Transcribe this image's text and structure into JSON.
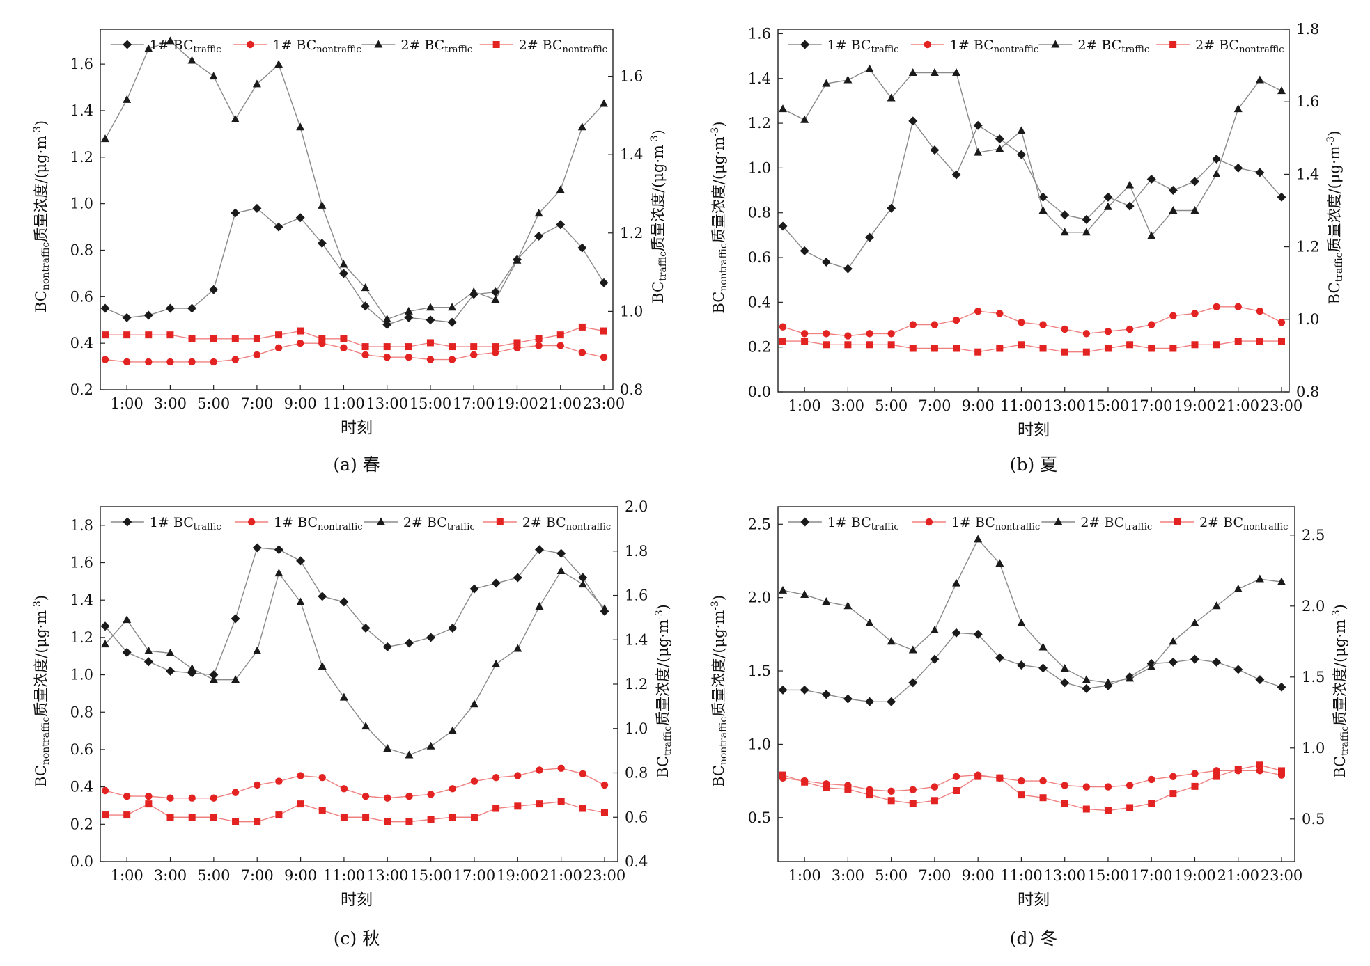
{
  "x_tick_labels": [
    "1:00",
    "3:00",
    "5:00",
    "7:00",
    "9:00",
    "11:00",
    "13:00",
    "15:00",
    "17:00",
    "19:00",
    "21:00",
    "23:00"
  ],
  "x_tick_values": [
    1,
    3,
    5,
    7,
    9,
    11,
    13,
    15,
    17,
    19,
    21,
    23
  ],
  "xlabel": "时刻",
  "ylabel_left": {
    "main": "BC",
    "sub": "nontraffic",
    "rest": "质量浓度/(μg·m",
    "sup": "-3",
    "close": ")"
  },
  "ylabel_right": {
    "main": "BC",
    "sub": "traffic",
    "rest": "质量浓度/(μg·m",
    "sup": "-3",
    "close": ")"
  },
  "legend": [
    {
      "main": "1# BC",
      "sub": "traffic"
    },
    {
      "main": "1# BC",
      "sub": "nontraffic"
    },
    {
      "main": "2# BC",
      "sub": "traffic"
    },
    {
      "main": "2# BC",
      "sub": "nontraffic"
    }
  ],
  "colors": {
    "black": "#1a1a1a",
    "red": "#e32222",
    "line_black": "#8a8a8a",
    "line_red": "#f08080"
  },
  "chart_data": [
    {
      "type": "line",
      "caption": "(a)  春",
      "x": [
        0,
        1,
        2,
        3,
        4,
        5,
        6,
        7,
        8,
        9,
        10,
        11,
        12,
        13,
        14,
        15,
        16,
        17,
        18,
        19,
        20,
        21,
        22,
        23
      ],
      "left_axis": {
        "ylim": [
          0.2,
          1.75
        ],
        "ticks": [
          0.2,
          0.4,
          0.6,
          0.8,
          1.0,
          1.2,
          1.4,
          1.6
        ],
        "tick_labels": [
          "0.2",
          "0.4",
          "0.6",
          "0.8",
          "1.0",
          "1.2",
          "1.4",
          "1.6"
        ]
      },
      "right_axis": {
        "ylim": [
          0.8,
          1.72
        ],
        "ticks": [
          0.8,
          1.0,
          1.2,
          1.4,
          1.6
        ],
        "tick_labels": [
          "0.8",
          "1.0",
          "1.2",
          "1.4",
          "1.6"
        ]
      },
      "series": [
        {
          "name": "1# BCtraffic",
          "axis": "left",
          "marker": "diamond",
          "color": "black",
          "values": [
            0.55,
            0.51,
            0.52,
            0.55,
            0.55,
            0.63,
            0.96,
            0.98,
            0.9,
            0.94,
            0.83,
            0.7,
            0.56,
            0.48,
            0.51,
            0.5,
            0.49,
            0.61,
            0.62,
            0.76,
            0.86,
            0.91,
            0.81,
            0.66
          ]
        },
        {
          "name": "1# BCnontraffic",
          "axis": "left",
          "marker": "circle",
          "color": "red",
          "values": [
            0.33,
            0.32,
            0.32,
            0.32,
            0.32,
            0.32,
            0.33,
            0.35,
            0.38,
            0.4,
            0.4,
            0.38,
            0.35,
            0.34,
            0.34,
            0.33,
            0.33,
            0.35,
            0.36,
            0.38,
            0.39,
            0.39,
            0.36,
            0.34
          ]
        },
        {
          "name": "2# BCtraffic",
          "axis": "right",
          "marker": "triangle",
          "color": "black",
          "values": [
            1.44,
            1.54,
            1.67,
            1.69,
            1.64,
            1.6,
            1.49,
            1.58,
            1.63,
            1.47,
            1.27,
            1.12,
            1.06,
            0.98,
            1.0,
            1.01,
            1.01,
            1.05,
            1.03,
            1.13,
            1.25,
            1.31,
            1.47,
            1.53
          ]
        },
        {
          "name": "2# BCnontraffic",
          "axis": "right",
          "marker": "square",
          "color": "red",
          "values": [
            0.94,
            0.94,
            0.94,
            0.94,
            0.93,
            0.93,
            0.93,
            0.93,
            0.94,
            0.95,
            0.93,
            0.93,
            0.91,
            0.91,
            0.91,
            0.92,
            0.91,
            0.91,
            0.91,
            0.92,
            0.93,
            0.94,
            0.96,
            0.95
          ]
        }
      ]
    },
    {
      "type": "line",
      "caption": "(b)  夏",
      "x": [
        0,
        1,
        2,
        3,
        4,
        5,
        6,
        7,
        8,
        9,
        10,
        11,
        12,
        13,
        14,
        15,
        16,
        17,
        18,
        19,
        20,
        21,
        22,
        23
      ],
      "left_axis": {
        "ylim": [
          0.0,
          1.62
        ],
        "ticks": [
          0.0,
          0.2,
          0.4,
          0.6,
          0.8,
          1.0,
          1.2,
          1.4,
          1.6
        ],
        "tick_labels": [
          "0.0",
          "0.2",
          "0.4",
          "0.6",
          "0.8",
          "1.0",
          "1.2",
          "1.4",
          "1.6"
        ]
      },
      "right_axis": {
        "ylim": [
          0.8,
          1.8
        ],
        "ticks": [
          0.8,
          1.0,
          1.2,
          1.4,
          1.6,
          1.8
        ],
        "tick_labels": [
          "0.8",
          "1.0",
          "1.2",
          "1.4",
          "1.6",
          "1.8"
        ]
      },
      "series": [
        {
          "name": "1# BCtraffic",
          "axis": "left",
          "marker": "diamond",
          "color": "black",
          "values": [
            0.74,
            0.63,
            0.58,
            0.55,
            0.69,
            0.82,
            1.21,
            1.08,
            0.97,
            1.19,
            1.13,
            1.06,
            0.87,
            0.79,
            0.77,
            0.87,
            0.83,
            0.95,
            0.9,
            0.94,
            1.04,
            1.0,
            0.98,
            0.87
          ]
        },
        {
          "name": "1# BCnontraffic",
          "axis": "left",
          "marker": "circle",
          "color": "red",
          "values": [
            0.29,
            0.26,
            0.26,
            0.25,
            0.26,
            0.26,
            0.3,
            0.3,
            0.32,
            0.36,
            0.35,
            0.31,
            0.3,
            0.28,
            0.26,
            0.27,
            0.28,
            0.3,
            0.34,
            0.35,
            0.38,
            0.38,
            0.36,
            0.31
          ]
        },
        {
          "name": "2# BCtraffic",
          "axis": "right",
          "marker": "triangle",
          "color": "black",
          "values": [
            1.58,
            1.55,
            1.65,
            1.66,
            1.69,
            1.61,
            1.68,
            1.68,
            1.68,
            1.46,
            1.47,
            1.52,
            1.3,
            1.24,
            1.24,
            1.31,
            1.37,
            1.23,
            1.3,
            1.3,
            1.4,
            1.58,
            1.66,
            1.63
          ]
        },
        {
          "name": "2# BCnontraffic",
          "axis": "right",
          "marker": "square",
          "color": "red",
          "values": [
            0.94,
            0.94,
            0.93,
            0.93,
            0.93,
            0.93,
            0.92,
            0.92,
            0.92,
            0.91,
            0.92,
            0.93,
            0.92,
            0.91,
            0.91,
            0.92,
            0.93,
            0.92,
            0.92,
            0.93,
            0.93,
            0.94,
            0.94,
            0.94
          ]
        }
      ]
    },
    {
      "type": "line",
      "caption": "(c)  秋",
      "x": [
        0,
        1,
        2,
        3,
        4,
        5,
        6,
        7,
        8,
        9,
        10,
        11,
        12,
        13,
        14,
        15,
        16,
        17,
        18,
        19,
        20,
        21,
        22,
        23
      ],
      "left_axis": {
        "ylim": [
          0.0,
          1.9
        ],
        "ticks": [
          0.0,
          0.2,
          0.4,
          0.6,
          0.8,
          1.0,
          1.2,
          1.4,
          1.6,
          1.8
        ],
        "tick_labels": [
          "0.0",
          "0.2",
          "0.4",
          "0.6",
          "0.8",
          "1.0",
          "1.2",
          "1.4",
          "1.6",
          "1.8"
        ]
      },
      "right_axis": {
        "ylim": [
          0.4,
          2.0
        ],
        "ticks": [
          0.4,
          0.6,
          0.8,
          1.0,
          1.2,
          1.4,
          1.6,
          1.8,
          2.0
        ],
        "tick_labels": [
          "0.4",
          "0.6",
          "0.8",
          "1.0",
          "1.2",
          "1.4",
          "1.6",
          "1.8",
          "2.0"
        ]
      },
      "series": [
        {
          "name": "1# BCtraffic",
          "axis": "left",
          "marker": "diamond",
          "color": "black",
          "values": [
            1.26,
            1.12,
            1.07,
            1.02,
            1.01,
            1.0,
            1.3,
            1.68,
            1.67,
            1.61,
            1.42,
            1.39,
            1.25,
            1.15,
            1.17,
            1.2,
            1.25,
            1.46,
            1.49,
            1.52,
            1.67,
            1.65,
            1.52,
            1.34
          ]
        },
        {
          "name": "1# BCnontraffic",
          "axis": "left",
          "marker": "circle",
          "color": "red",
          "values": [
            0.38,
            0.35,
            0.35,
            0.34,
            0.34,
            0.34,
            0.37,
            0.41,
            0.43,
            0.46,
            0.45,
            0.39,
            0.35,
            0.34,
            0.35,
            0.36,
            0.39,
            0.43,
            0.45,
            0.46,
            0.49,
            0.5,
            0.47,
            0.41
          ]
        },
        {
          "name": "2# BCtraffic",
          "axis": "right",
          "marker": "triangle",
          "color": "black",
          "values": [
            1.38,
            1.49,
            1.35,
            1.34,
            1.27,
            1.22,
            1.22,
            1.35,
            1.7,
            1.57,
            1.28,
            1.14,
            1.01,
            0.91,
            0.88,
            0.92,
            0.99,
            1.11,
            1.29,
            1.36,
            1.55,
            1.71,
            1.65,
            1.54
          ]
        },
        {
          "name": "2# BCnontraffic",
          "axis": "right",
          "marker": "square",
          "color": "red",
          "values": [
            0.61,
            0.61,
            0.66,
            0.6,
            0.6,
            0.6,
            0.58,
            0.58,
            0.61,
            0.66,
            0.63,
            0.6,
            0.6,
            0.58,
            0.58,
            0.59,
            0.6,
            0.6,
            0.64,
            0.65,
            0.66,
            0.67,
            0.64,
            0.62
          ]
        }
      ]
    },
    {
      "type": "line",
      "caption": "(d)  冬",
      "x": [
        0,
        1,
        2,
        3,
        4,
        5,
        6,
        7,
        8,
        9,
        10,
        11,
        12,
        13,
        14,
        15,
        16,
        17,
        18,
        19,
        20,
        21,
        22,
        23
      ],
      "left_axis": {
        "ylim": [
          0.2,
          2.62
        ],
        "ticks": [
          0.5,
          1.0,
          1.5,
          2.0,
          2.5
        ],
        "tick_labels": [
          "0.5",
          "1.0",
          "1.5",
          "2.0",
          "2.5"
        ]
      },
      "right_axis": {
        "ylim": [
          0.2,
          2.7
        ],
        "ticks": [
          0.5,
          1.0,
          1.5,
          2.0,
          2.5
        ],
        "tick_labels": [
          "0.5",
          "1.0",
          "1.5",
          "2.0",
          "2.5"
        ]
      },
      "series": [
        {
          "name": "1# BCtraffic",
          "axis": "left",
          "marker": "diamond",
          "color": "black",
          "values": [
            1.37,
            1.37,
            1.34,
            1.31,
            1.29,
            1.29,
            1.42,
            1.58,
            1.76,
            1.75,
            1.59,
            1.54,
            1.52,
            1.42,
            1.38,
            1.4,
            1.46,
            1.55,
            1.56,
            1.58,
            1.56,
            1.51,
            1.44,
            1.39
          ]
        },
        {
          "name": "1# BCnontraffic",
          "axis": "left",
          "marker": "circle",
          "color": "red",
          "values": [
            0.77,
            0.75,
            0.73,
            0.72,
            0.69,
            0.68,
            0.69,
            0.71,
            0.78,
            0.79,
            0.77,
            0.75,
            0.75,
            0.72,
            0.71,
            0.71,
            0.72,
            0.76,
            0.78,
            0.8,
            0.82,
            0.82,
            0.82,
            0.79
          ]
        },
        {
          "name": "2# BCtraffic",
          "axis": "right",
          "marker": "triangle",
          "color": "black",
          "values": [
            2.11,
            2.08,
            2.03,
            2.0,
            1.88,
            1.75,
            1.69,
            1.83,
            2.16,
            2.47,
            2.3,
            1.88,
            1.71,
            1.56,
            1.48,
            1.46,
            1.49,
            1.57,
            1.75,
            1.88,
            2.0,
            2.12,
            2.19,
            2.17
          ]
        },
        {
          "name": "2# BCnontraffic",
          "axis": "right",
          "marker": "square",
          "color": "red",
          "values": [
            0.81,
            0.76,
            0.72,
            0.71,
            0.67,
            0.63,
            0.61,
            0.63,
            0.7,
            0.8,
            0.79,
            0.67,
            0.65,
            0.61,
            0.57,
            0.56,
            0.58,
            0.61,
            0.68,
            0.73,
            0.8,
            0.85,
            0.88,
            0.84
          ]
        }
      ]
    }
  ]
}
